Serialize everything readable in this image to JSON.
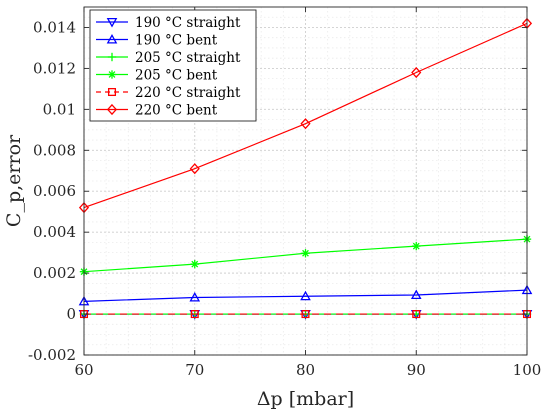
{
  "chart_data": {
    "type": "line",
    "xlabel": "Δp [mbar]",
    "ylabel": "C_p,error",
    "xlim": [
      60,
      100
    ],
    "ylim": [
      -0.002,
      0.015
    ],
    "x_ticks": [
      "60",
      "70",
      "80",
      "90",
      "100"
    ],
    "y_ticks": [
      "-0.002",
      "0",
      "0.002",
      "0.004",
      "0.006",
      "0.008",
      "0.01",
      "0.012",
      "0.014"
    ],
    "grid": true,
    "legend_position": "top-left",
    "x": [
      60,
      70,
      80,
      90,
      100
    ],
    "series": [
      {
        "name": "190 °C straight",
        "values": [
          0,
          0,
          0,
          0,
          0
        ],
        "color": "#0000ff",
        "marker": "triangle-down",
        "dash": "solid"
      },
      {
        "name": "190 °C bent",
        "values": [
          0.00062,
          0.00081,
          0.00087,
          0.00093,
          0.00117
        ],
        "color": "#0000ff",
        "marker": "triangle-up",
        "dash": "solid"
      },
      {
        "name": "205 °C straight",
        "values": [
          0,
          0,
          0,
          0,
          0
        ],
        "color": "#00ff00",
        "marker": "plus",
        "dash": "solid"
      },
      {
        "name": "205 °C bent",
        "values": [
          0.00207,
          0.00244,
          0.00297,
          0.00332,
          0.00366
        ],
        "color": "#00ff00",
        "marker": "asterisk",
        "dash": "solid"
      },
      {
        "name": "220 °C straight",
        "values": [
          0,
          0,
          0,
          0,
          0
        ],
        "color": "#ff0000",
        "marker": "square",
        "dash": "dashed"
      },
      {
        "name": "220 °C bent",
        "values": [
          0.0052,
          0.0071,
          0.0093,
          0.0118,
          0.0142
        ],
        "color": "#ff0000",
        "marker": "diamond",
        "dash": "solid"
      }
    ]
  }
}
